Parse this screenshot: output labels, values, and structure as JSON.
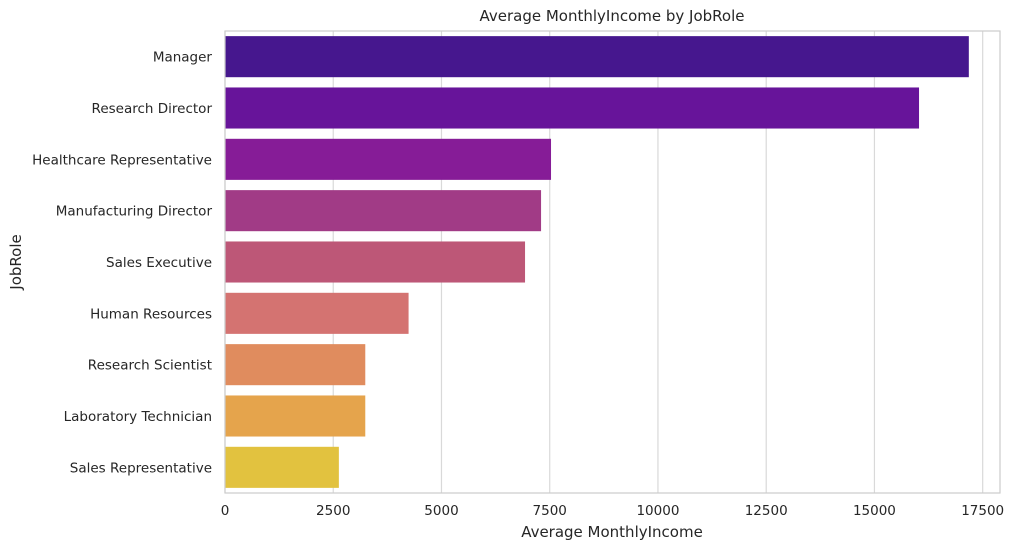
{
  "chart_data": {
    "type": "bar",
    "orientation": "horizontal",
    "title": "Average MonthlyIncome by JobRole",
    "xlabel": "Average MonthlyIncome",
    "ylabel": "JobRole",
    "xlim": [
      0,
      17900
    ],
    "xticks": [
      0,
      2500,
      5000,
      7500,
      10000,
      12500,
      15000,
      17500
    ],
    "xtick_labels": [
      "0",
      "2500",
      "5000",
      "7500",
      "10000",
      "12500",
      "15000",
      "17500"
    ],
    "grid": true,
    "categories": [
      "Manager",
      "Research Director",
      "Healthcare Representative",
      "Manufacturing Director",
      "Sales Executive",
      "Human Resources",
      "Research Scientist",
      "Laboratory Technician",
      "Sales Representative"
    ],
    "values": [
      17180,
      16030,
      7530,
      7300,
      6930,
      4240,
      3240,
      3240,
      2630
    ],
    "colors": [
      "#46178e",
      "#67149a",
      "#861c97",
      "#a13b86",
      "#bd5777",
      "#d47371",
      "#e08c5e",
      "#e5a44c",
      "#e2c23f"
    ]
  }
}
